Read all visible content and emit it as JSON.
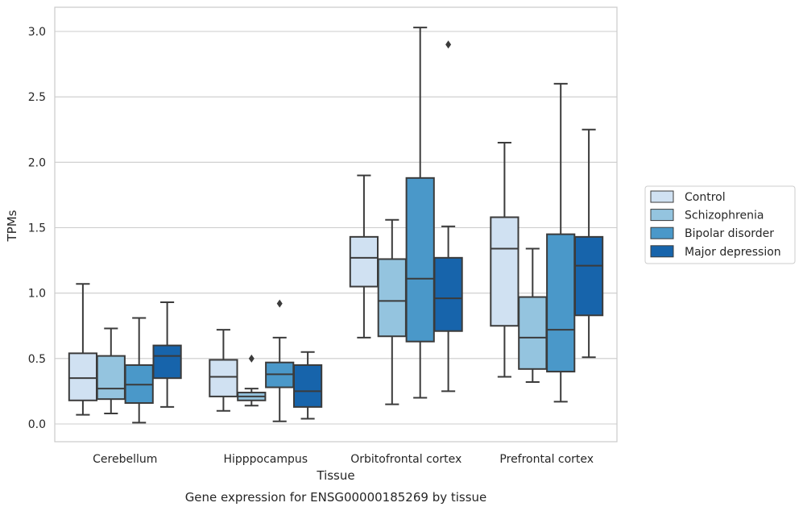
{
  "caption": "Gene expression for ENSG00000185269 by tissue",
  "chart_data": {
    "type": "box",
    "xlabel": "Tissue",
    "ylabel": "TPMs",
    "ylim": [
      -0.13,
      3.18
    ],
    "yticks": [
      "0.0",
      "0.5",
      "1.0",
      "1.5",
      "2.0",
      "2.5",
      "3.0"
    ],
    "grid": true,
    "legend_position": "right",
    "categories": [
      "Cerebellum",
      "Hipppocampus",
      "Orbitofrontal cortex",
      "Prefrontal cortex"
    ],
    "series": [
      {
        "name": "Control",
        "color": "#d0e1f2",
        "boxes": [
          {
            "whislo": 0.07,
            "q1": 0.18,
            "med": 0.35,
            "q3": 0.54,
            "whishi": 1.07,
            "fliers": []
          },
          {
            "whislo": 0.1,
            "q1": 0.21,
            "med": 0.36,
            "q3": 0.49,
            "whishi": 0.72,
            "fliers": []
          },
          {
            "whislo": 0.66,
            "q1": 1.05,
            "med": 1.27,
            "q3": 1.43,
            "whishi": 1.9,
            "fliers": []
          },
          {
            "whislo": 0.36,
            "q1": 0.75,
            "med": 1.34,
            "q3": 1.58,
            "whishi": 2.15,
            "fliers": []
          }
        ]
      },
      {
        "name": "Schizophrenia",
        "color": "#94c4df",
        "boxes": [
          {
            "whislo": 0.08,
            "q1": 0.19,
            "med": 0.27,
            "q3": 0.52,
            "whishi": 0.73,
            "fliers": []
          },
          {
            "whislo": 0.14,
            "q1": 0.18,
            "med": 0.21,
            "q3": 0.24,
            "whishi": 0.27,
            "fliers": [
              0.5
            ]
          },
          {
            "whislo": 0.15,
            "q1": 0.67,
            "med": 0.94,
            "q3": 1.26,
            "whishi": 1.56,
            "fliers": []
          },
          {
            "whislo": 0.32,
            "q1": 0.42,
            "med": 0.66,
            "q3": 0.97,
            "whishi": 1.34,
            "fliers": []
          }
        ]
      },
      {
        "name": "Bipolar disorder",
        "color": "#4a98c9",
        "boxes": [
          {
            "whislo": 0.01,
            "q1": 0.16,
            "med": 0.3,
            "q3": 0.45,
            "whishi": 0.81,
            "fliers": []
          },
          {
            "whislo": 0.02,
            "q1": 0.28,
            "med": 0.38,
            "q3": 0.47,
            "whishi": 0.66,
            "fliers": [
              0.92
            ]
          },
          {
            "whislo": 0.2,
            "q1": 0.63,
            "med": 1.11,
            "q3": 1.88,
            "whishi": 3.03,
            "fliers": []
          },
          {
            "whislo": 0.17,
            "q1": 0.4,
            "med": 0.72,
            "q3": 1.45,
            "whishi": 2.6,
            "fliers": []
          }
        ]
      },
      {
        "name": "Major depression",
        "color": "#1764ab",
        "boxes": [
          {
            "whislo": 0.13,
            "q1": 0.35,
            "med": 0.52,
            "q3": 0.6,
            "whishi": 0.93,
            "fliers": []
          },
          {
            "whislo": 0.04,
            "q1": 0.13,
            "med": 0.25,
            "q3": 0.45,
            "whishi": 0.55,
            "fliers": []
          },
          {
            "whislo": 0.25,
            "q1": 0.71,
            "med": 0.96,
            "q3": 1.27,
            "whishi": 1.51,
            "fliers": [
              2.9
            ]
          },
          {
            "whislo": 0.51,
            "q1": 0.83,
            "med": 1.21,
            "q3": 1.43,
            "whishi": 2.25,
            "fliers": []
          }
        ]
      }
    ]
  }
}
